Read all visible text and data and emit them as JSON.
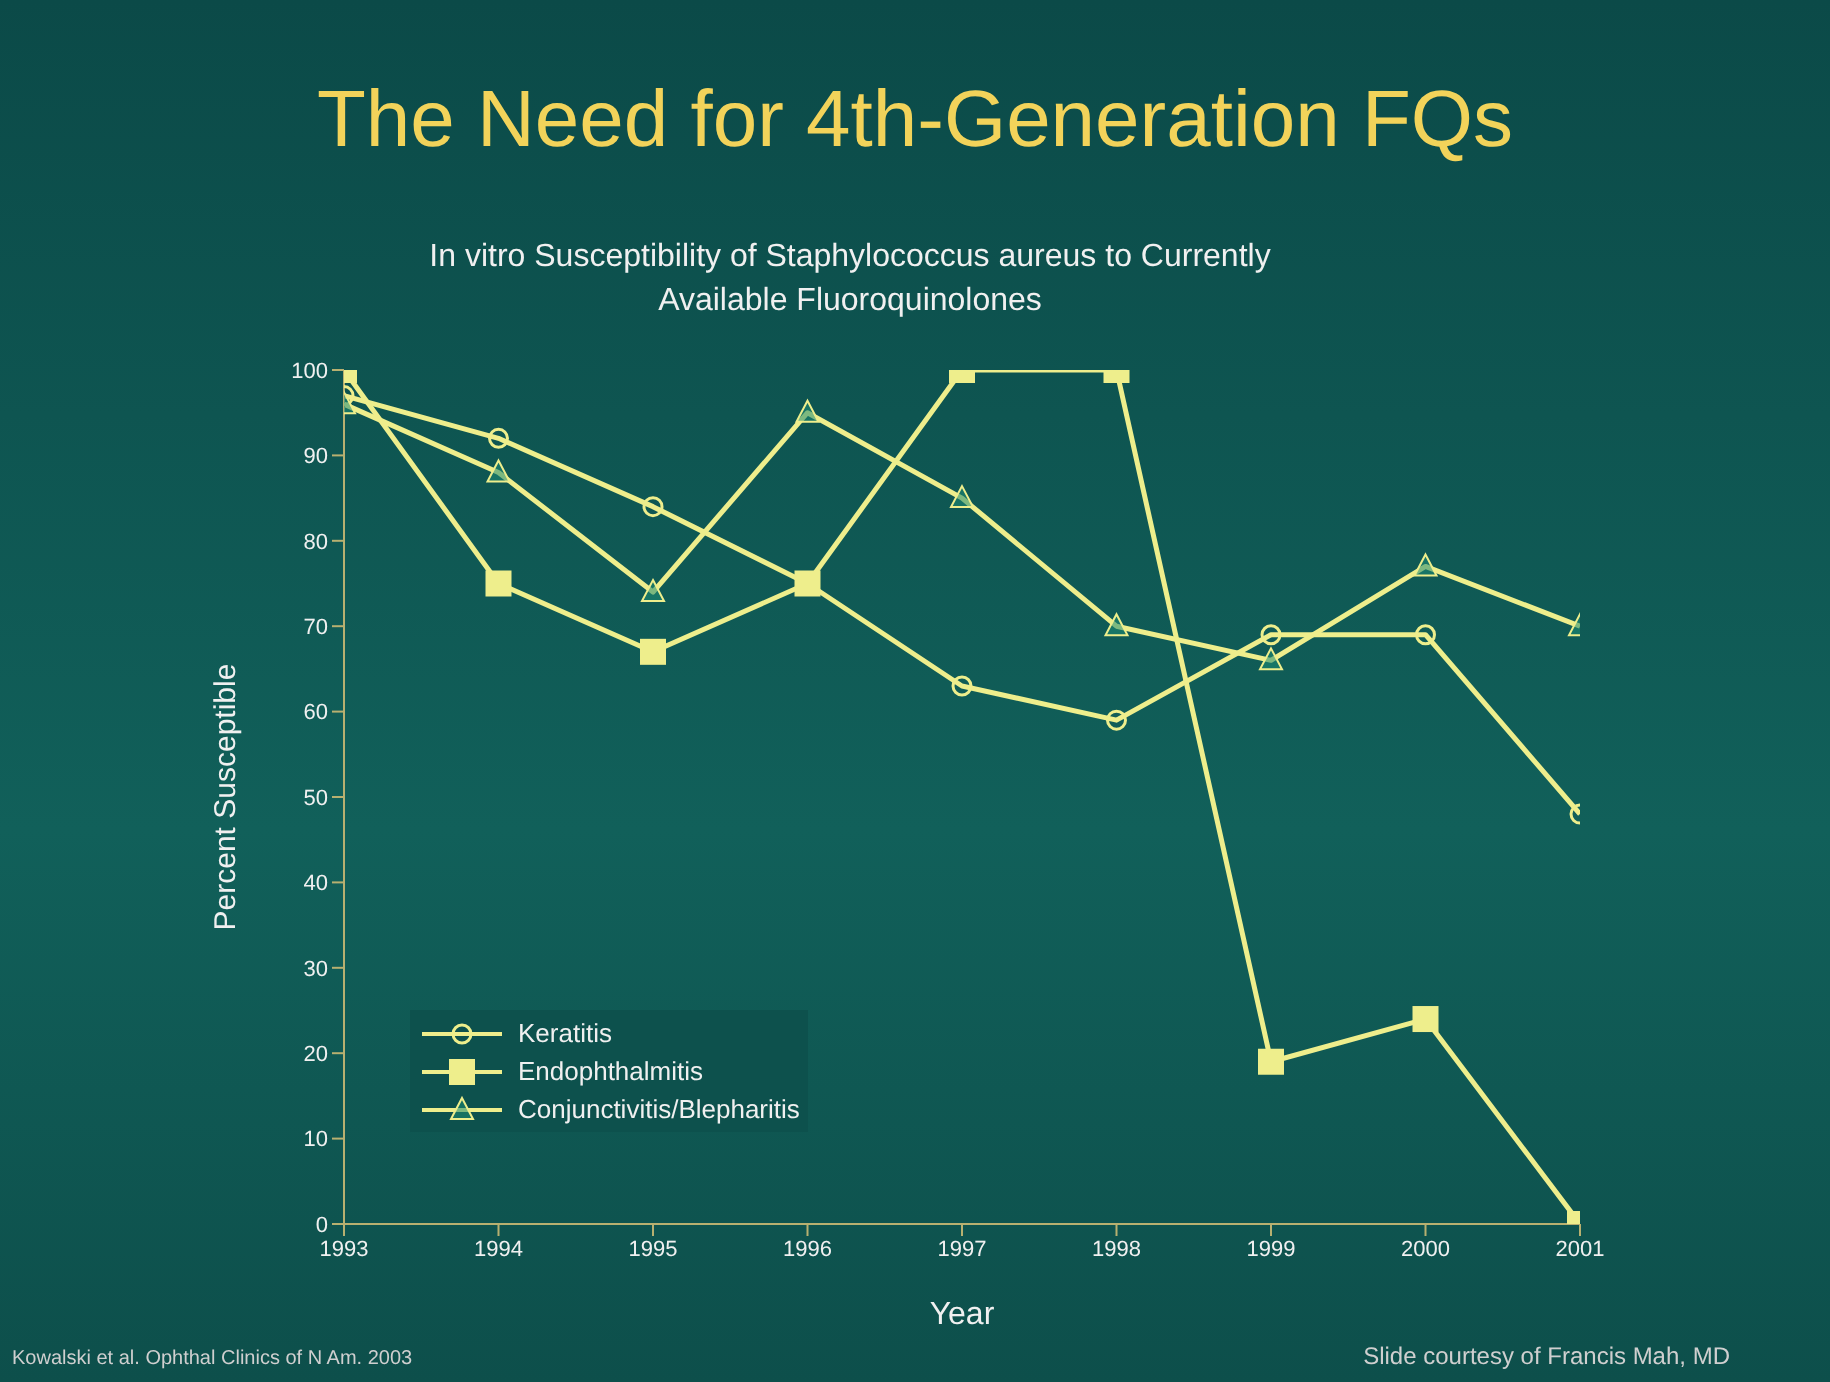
{
  "chart_data": {
    "type": "line",
    "title": "The Need for 4th-Generation FQs",
    "subtitle": "In vitro Susceptibility of Staphylococcus aureus to Currently Available Fluoroquinolones",
    "xlabel": "Year",
    "ylabel": "Percent Susceptible",
    "x": [
      1993,
      1994,
      1995,
      1996,
      1997,
      1998,
      1999,
      2000,
      2001
    ],
    "series": [
      {
        "name": "Keratitis",
        "color": "#eeee8c",
        "marker": "circle",
        "values": [
          97,
          92,
          84,
          75,
          63,
          59,
          69,
          69,
          48
        ]
      },
      {
        "name": "Endophthalmitis",
        "color": "#eeee8c",
        "marker": "square",
        "values": [
          100,
          75,
          67,
          75,
          100,
          100,
          19,
          24,
          0
        ]
      },
      {
        "name": "Conjunctivitis/Blepharitis",
        "color": "#eeee8c",
        "marker": "triangle",
        "values": [
          96,
          88,
          74,
          95,
          85,
          70,
          66,
          77,
          70
        ]
      }
    ],
    "xlim": [
      1993,
      2001
    ],
    "xticks": [
      1993,
      1994,
      1995,
      1996,
      1997,
      1998,
      1999,
      2000,
      2001
    ],
    "ylim": [
      0,
      100
    ],
    "yticks": [
      0,
      10,
      20,
      30,
      40,
      50,
      60,
      70,
      80,
      90,
      100
    ],
    "grid": false,
    "legend": "bottom left",
    "line_style": "solid",
    "annotations": [
      "Kowalski et al. Ophthal Clinics of N Am. 2003",
      "Slide courtesy of Francis Mah, MD"
    ]
  }
}
